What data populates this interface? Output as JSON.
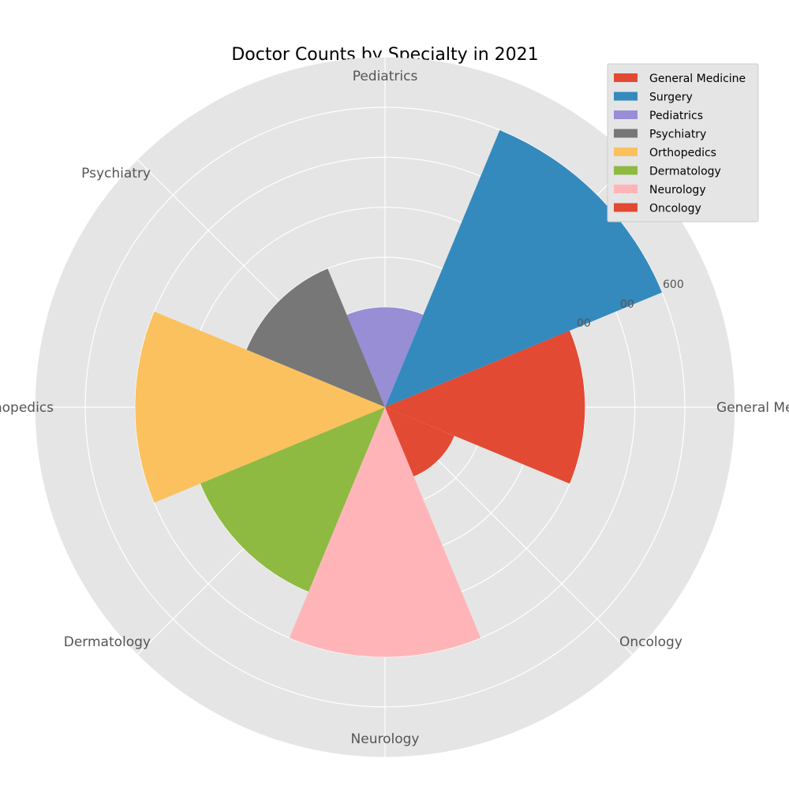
{
  "chart_data": {
    "type": "polar-bar",
    "title": "Doctor Counts by Specialty in 2021",
    "categories": [
      "General Medicine",
      "Surgery",
      "Pediatrics",
      "Psychiatry",
      "Orthopedics",
      "Dermatology",
      "Neurology",
      "Oncology"
    ],
    "values": [
      400,
      600,
      200,
      300,
      500,
      400,
      500,
      150
    ],
    "colors": [
      "#E24A33",
      "#348ABD",
      "#988ED5",
      "#777777",
      "#FBC15E",
      "#8EBA42",
      "#FFB5B8",
      "#E24A33"
    ],
    "rlim": [
      0,
      600
    ],
    "radial_ticks": [
      100,
      200,
      300,
      400,
      500,
      600
    ],
    "visible_radial_tick_labels": [
      "600",
      "00",
      "00"
    ],
    "grid": true,
    "legend": {
      "placement": "top-right",
      "entries": [
        "General Medicine",
        "Surgery",
        "Pediatrics",
        "Psychiatry",
        "Orthopedics",
        "Dermatology",
        "Neurology",
        "Oncology"
      ]
    }
  }
}
